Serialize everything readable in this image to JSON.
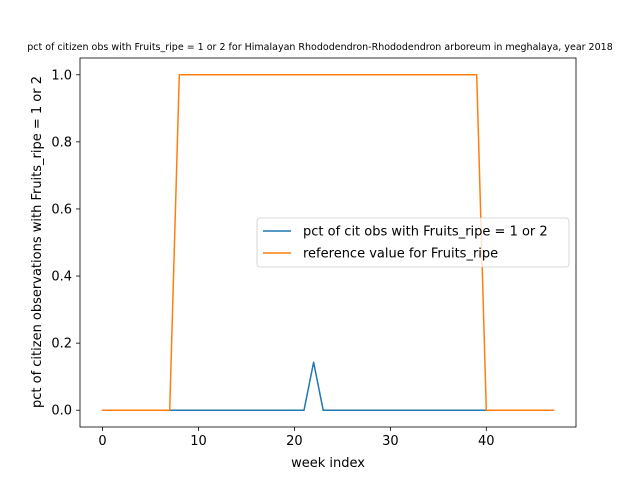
{
  "chart_data": {
    "type": "line",
    "title": "pct of citizen obs with Fruits_ripe = 1 or 2 for Himalayan Rhododendron-Rhododendron arboreum in meghalaya, year 2018",
    "xlabel": "week index",
    "ylabel": "pct of citizen observations with Fruits_ripe = 1 or 2",
    "xlim": [
      -2.35,
      49.35
    ],
    "ylim": [
      -0.05,
      1.05
    ],
    "xticks": [
      0,
      10,
      20,
      30,
      40
    ],
    "yticks": [
      0.0,
      0.2,
      0.4,
      0.6,
      0.8,
      1.0
    ],
    "xtick_labels": [
      "0",
      "10",
      "20",
      "30",
      "40"
    ],
    "ytick_labels": [
      "0.0",
      "0.2",
      "0.4",
      "0.6",
      "0.8",
      "1.0"
    ],
    "legend_position": "center-right",
    "grid": false,
    "series": [
      {
        "name": "pct of cit obs with Fruits_ripe = 1 or 2",
        "color": "#1f77b4",
        "x": [
          0,
          1,
          2,
          3,
          4,
          5,
          6,
          7,
          8,
          9,
          10,
          11,
          12,
          13,
          14,
          15,
          16,
          17,
          18,
          19,
          20,
          21,
          22,
          23,
          24,
          25,
          26,
          27,
          28,
          29,
          30,
          31,
          32,
          33,
          34,
          35,
          36,
          37,
          38,
          39,
          40,
          41,
          42,
          43,
          44,
          45,
          46,
          47
        ],
        "y": [
          0,
          0,
          0,
          0,
          0,
          0,
          0,
          0,
          0,
          0,
          0,
          0,
          0,
          0,
          0,
          0,
          0,
          0,
          0,
          0,
          0,
          0,
          0.143,
          0,
          0,
          0,
          0,
          0,
          0,
          0,
          0,
          0,
          0,
          0,
          0,
          0,
          0,
          0,
          0,
          0,
          0,
          0,
          0,
          0,
          0,
          0,
          0,
          0
        ]
      },
      {
        "name": "reference value for Fruits_ripe",
        "color": "#ff7f0e",
        "x": [
          0,
          1,
          2,
          3,
          4,
          5,
          6,
          7,
          8,
          9,
          10,
          11,
          12,
          13,
          14,
          15,
          16,
          17,
          18,
          19,
          20,
          21,
          22,
          23,
          24,
          25,
          26,
          27,
          28,
          29,
          30,
          31,
          32,
          33,
          34,
          35,
          36,
          37,
          38,
          39,
          40,
          41,
          42,
          43,
          44,
          45,
          46,
          47
        ],
        "y": [
          0,
          0,
          0,
          0,
          0,
          0,
          0,
          0,
          1,
          1,
          1,
          1,
          1,
          1,
          1,
          1,
          1,
          1,
          1,
          1,
          1,
          1,
          1,
          1,
          1,
          1,
          1,
          1,
          1,
          1,
          1,
          1,
          1,
          1,
          1,
          1,
          1,
          1,
          1,
          1,
          0,
          0,
          0,
          0,
          0,
          0,
          0,
          0
        ]
      }
    ]
  }
}
